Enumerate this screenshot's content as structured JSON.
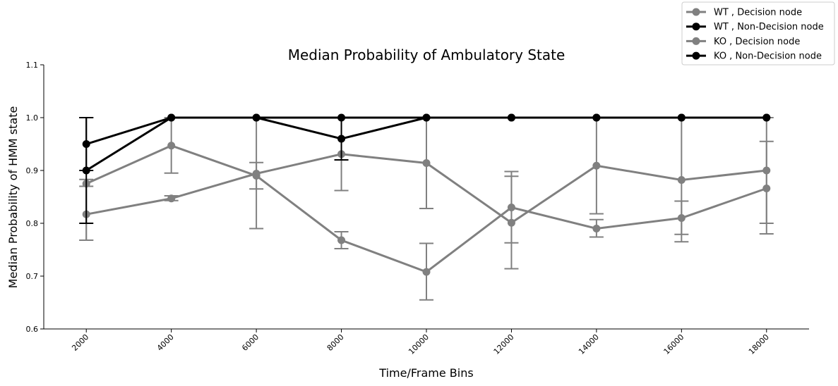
{
  "chart_data": {
    "type": "line",
    "title": "Median Probability of Ambulatory State",
    "xlabel": "Time/Frame Bins",
    "ylabel": "Median Probability of HMM state",
    "x": [
      2000,
      4000,
      6000,
      8000,
      10000,
      12000,
      14000,
      16000,
      18000
    ],
    "x_tick_labels": [
      "2000",
      "4000",
      "6000",
      "8000",
      "10000",
      "12000",
      "14000",
      "16000",
      "18000"
    ],
    "ylim": [
      0.6,
      1.1
    ],
    "y_ticks": [
      0.6,
      0.7,
      0.8,
      0.9,
      1.0,
      1.1
    ],
    "y_tick_labels": [
      "0.6",
      "0.7",
      "0.8",
      "0.9",
      "1.0",
      "1.1"
    ],
    "grid": false,
    "legend_position": "top-right",
    "series": [
      {
        "name": "WT , Decision node",
        "color": "#808080",
        "values": [
          0.875,
          0.947,
          0.89,
          0.768,
          0.708,
          0.83,
          0.79,
          0.81,
          0.866
        ],
        "err_low": [
          0.768,
          0.895,
          0.79,
          0.752,
          0.655,
          0.763,
          0.774,
          0.779,
          0.78
        ],
        "err_high": [
          0.883,
          1.0,
          0.915,
          0.784,
          0.762,
          0.898,
          0.807,
          0.842,
          0.955
        ]
      },
      {
        "name": "WT , Non-Decision node",
        "color": "#000000",
        "values": [
          0.95,
          1.0,
          1.0,
          0.96,
          1.0,
          1.0,
          1.0,
          1.0,
          1.0
        ],
        "err_low": [
          0.9,
          1.0,
          1.0,
          0.92,
          1.0,
          1.0,
          1.0,
          1.0,
          1.0
        ],
        "err_high": [
          1.0,
          1.0,
          1.0,
          1.0,
          1.0,
          1.0,
          1.0,
          1.0,
          1.0
        ]
      },
      {
        "name": "KO , Decision node",
        "color": "#808080",
        "values": [
          0.817,
          0.847,
          0.894,
          0.931,
          0.914,
          0.801,
          0.909,
          0.882,
          0.9
        ],
        "err_low": [
          0.768,
          0.843,
          0.865,
          0.862,
          0.828,
          0.714,
          0.818,
          0.765,
          0.8
        ],
        "err_high": [
          0.87,
          0.852,
          1.0,
          1.0,
          1.0,
          0.889,
          1.0,
          1.0,
          1.0
        ]
      },
      {
        "name": "KO , Non-Decision node",
        "color": "#000000",
        "values": [
          0.9,
          1.0,
          1.0,
          1.0,
          1.0,
          1.0,
          1.0,
          1.0,
          1.0
        ],
        "err_low": [
          0.8,
          1.0,
          1.0,
          1.0,
          1.0,
          1.0,
          1.0,
          1.0,
          1.0
        ],
        "err_high": [
          1.0,
          1.0,
          1.0,
          1.0,
          1.0,
          1.0,
          1.0,
          1.0,
          1.0
        ]
      }
    ]
  }
}
